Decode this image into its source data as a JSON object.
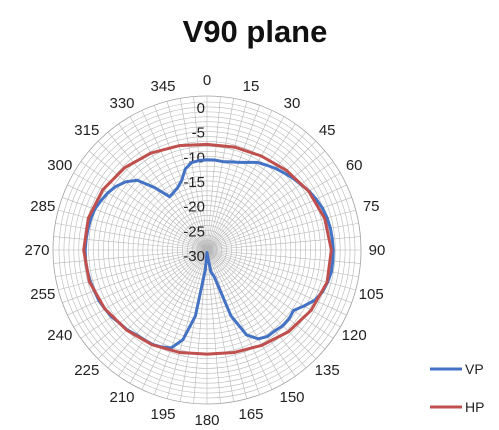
{
  "chart_data": {
    "type": "radar",
    "title": "V90 plane",
    "angle_unit": "degrees",
    "angle_ticks": [
      0,
      15,
      30,
      45,
      60,
      75,
      90,
      105,
      120,
      135,
      150,
      165,
      180,
      195,
      210,
      225,
      240,
      255,
      270,
      285,
      300,
      315,
      330,
      345
    ],
    "radial_ticks": [
      0,
      -5,
      -10,
      -15,
      -20,
      -25,
      -30
    ],
    "rlim": [
      -30,
      0
    ],
    "grid": true,
    "legend_position": "right",
    "series": [
      {
        "name": "VP",
        "color": "#4472C4",
        "points": [
          [
            0,
            -11.7
          ],
          [
            5,
            -11.7
          ],
          [
            10,
            -11.8
          ],
          [
            15,
            -11.5
          ],
          [
            20,
            -11.1
          ],
          [
            25,
            -10.4
          ],
          [
            30,
            -9.5
          ],
          [
            35,
            -9.0
          ],
          [
            40,
            -8.4
          ],
          [
            45,
            -7.9
          ],
          [
            50,
            -7.3
          ],
          [
            55,
            -6.8
          ],
          [
            60,
            -6.1
          ],
          [
            65,
            -5.6
          ],
          [
            70,
            -5.1
          ],
          [
            75,
            -4.8
          ],
          [
            80,
            -4.6
          ],
          [
            85,
            -4.5
          ],
          [
            90,
            -4.4
          ],
          [
            95,
            -4.4
          ],
          [
            100,
            -4.4
          ],
          [
            105,
            -4.7
          ],
          [
            110,
            -5.1
          ],
          [
            115,
            -5.9
          ],
          [
            120,
            -7.3
          ],
          [
            125,
            -8.6
          ],
          [
            130,
            -8.3
          ],
          [
            135,
            -8.3
          ],
          [
            140,
            -8.6
          ],
          [
            145,
            -8.6
          ],
          [
            150,
            -9.2
          ],
          [
            155,
            -11.0
          ],
          [
            160,
            -15.8
          ],
          [
            165,
            -24.5
          ],
          [
            170,
            -25.5
          ],
          [
            175,
            -29.0
          ],
          [
            180,
            -29.5
          ],
          [
            185,
            -25.9
          ],
          [
            190,
            -16.4
          ],
          [
            195,
            -11.2
          ],
          [
            200,
            -8.9
          ],
          [
            205,
            -8.3
          ],
          [
            210,
            -7.9
          ],
          [
            215,
            -7.8
          ],
          [
            220,
            -7.6
          ],
          [
            225,
            -7.1
          ],
          [
            230,
            -6.9
          ],
          [
            235,
            -6.4
          ],
          [
            240,
            -6.1
          ],
          [
            245,
            -5.8
          ],
          [
            250,
            -5.7
          ],
          [
            255,
            -5.5
          ],
          [
            260,
            -5.4
          ],
          [
            265,
            -5.3
          ],
          [
            270,
            -5.3
          ],
          [
            275,
            -5.4
          ],
          [
            280,
            -5.5
          ],
          [
            285,
            -5.6
          ],
          [
            290,
            -5.8
          ],
          [
            295,
            -6.3
          ],
          [
            300,
            -6.8
          ],
          [
            305,
            -7.5
          ],
          [
            310,
            -8.5
          ],
          [
            315,
            -10.0
          ],
          [
            320,
            -13.5
          ],
          [
            325,
            -16.8
          ],
          [
            330,
            -16.5
          ],
          [
            335,
            -16.0
          ],
          [
            340,
            -15.0
          ],
          [
            345,
            -13.0
          ],
          [
            350,
            -12.0
          ],
          [
            355,
            -11.8
          ]
        ]
      },
      {
        "name": "HP",
        "color": "#C0504D",
        "points": [
          [
            0,
            -8.6
          ],
          [
            15,
            -8.4
          ],
          [
            30,
            -8.0
          ],
          [
            45,
            -7.2
          ],
          [
            60,
            -6.2
          ],
          [
            75,
            -5.3
          ],
          [
            90,
            -4.8
          ],
          [
            105,
            -4.8
          ],
          [
            120,
            -5.6
          ],
          [
            135,
            -6.6
          ],
          [
            150,
            -7.7
          ],
          [
            165,
            -8.5
          ],
          [
            180,
            -8.9
          ],
          [
            195,
            -8.5
          ],
          [
            210,
            -7.8
          ],
          [
            225,
            -7.0
          ],
          [
            240,
            -6.1
          ],
          [
            255,
            -5.3
          ],
          [
            270,
            -5.0
          ],
          [
            285,
            -5.1
          ],
          [
            300,
            -5.6
          ],
          [
            315,
            -6.4
          ],
          [
            330,
            -7.3
          ],
          [
            345,
            -8.1
          ]
        ]
      }
    ]
  }
}
